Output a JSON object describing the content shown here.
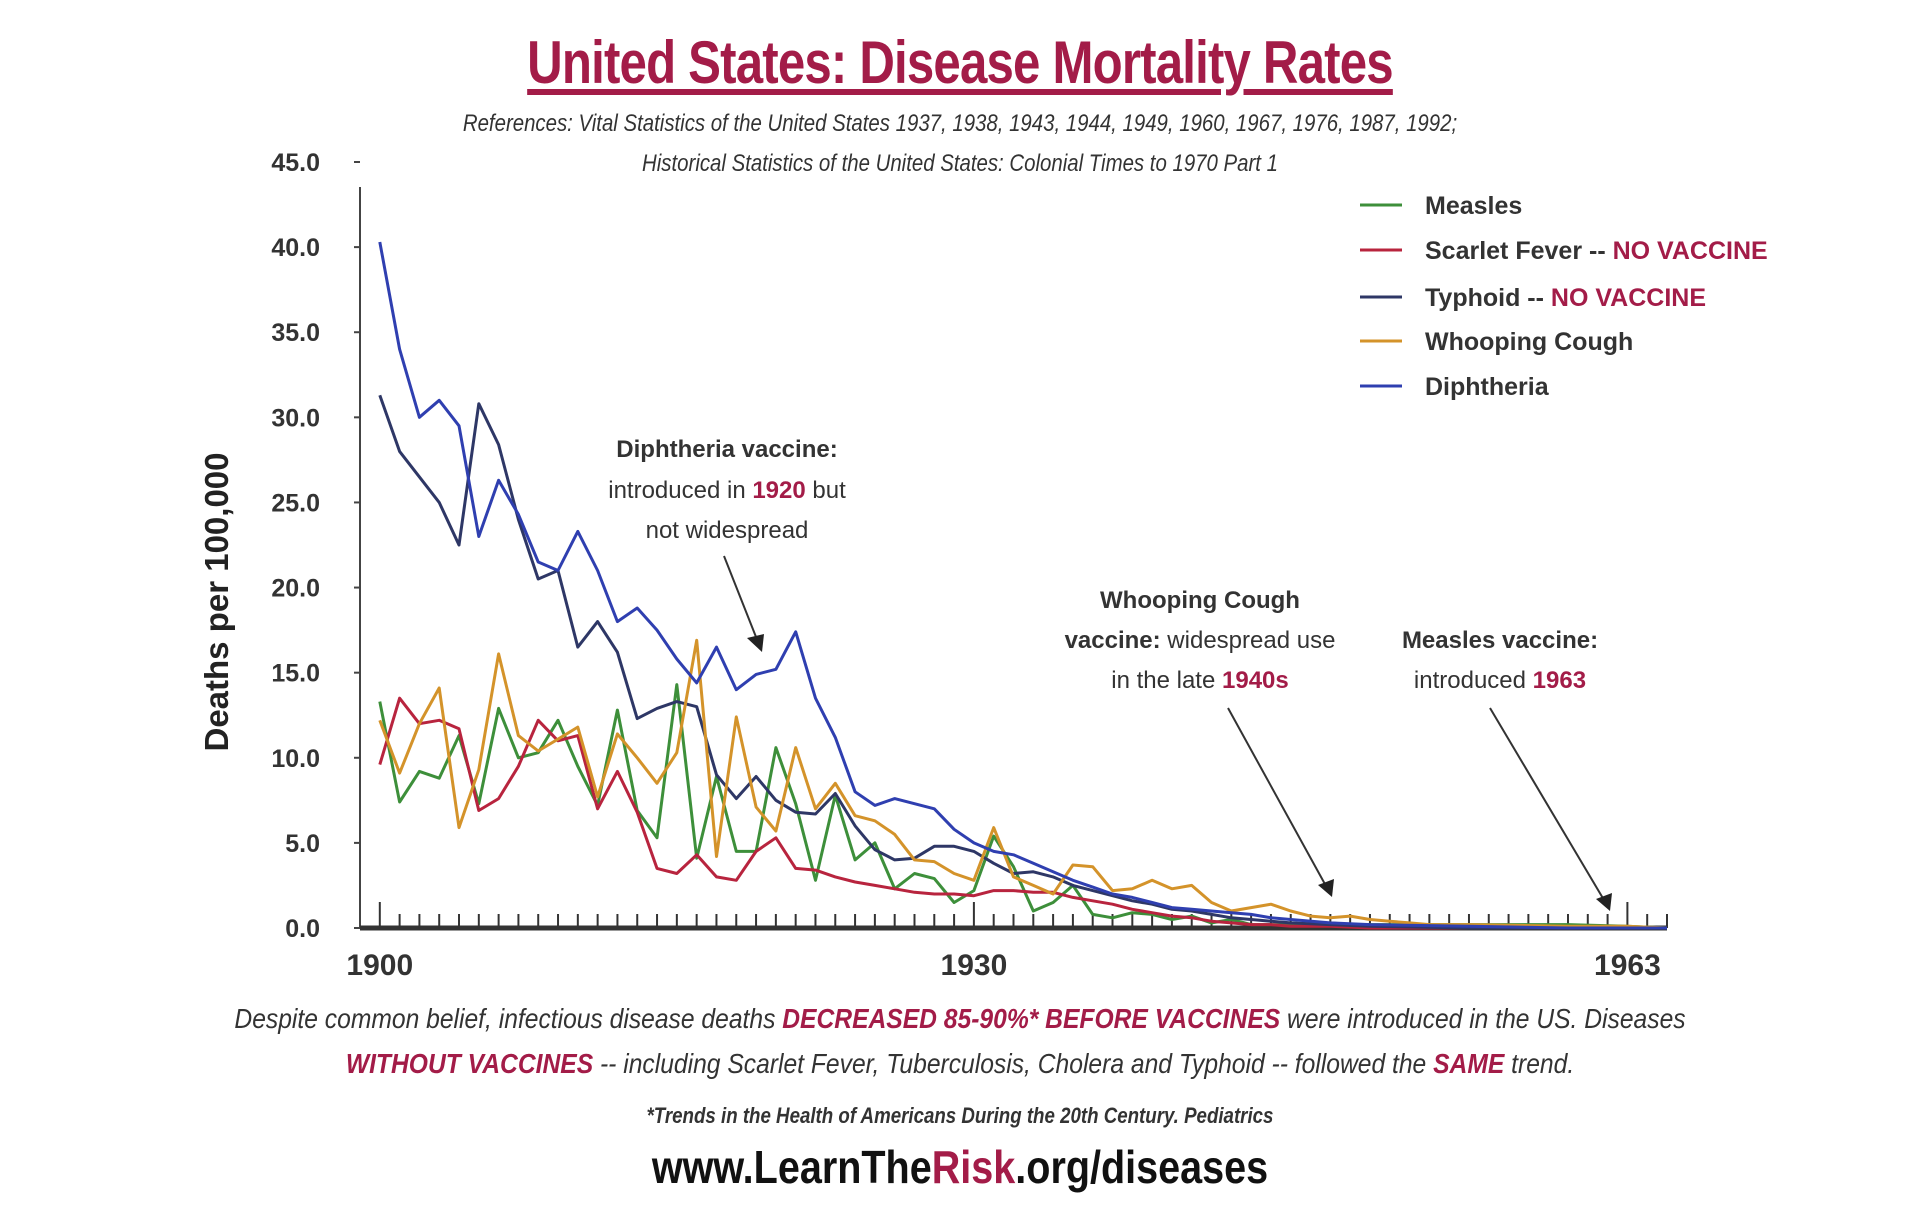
{
  "header": {
    "title": "United States: Disease Mortality Rates",
    "references_line1": "References: Vital Statistics of the United States 1937, 1938, 1943, 1944, 1949, 1960, 1967, 1976, 1987, 1992;",
    "references_line2": "Historical Statistics of the United States: Colonial Times to 1970 Part 1"
  },
  "chart_data": {
    "type": "line",
    "ylabel": "Deaths per 100,000",
    "xlabel": "",
    "ylim": [
      0,
      45
    ],
    "xlim": [
      1899,
      1965
    ],
    "yticks": [
      "0.0",
      "5.0",
      "10.0",
      "15.0",
      "20.0",
      "25.0",
      "30.0",
      "35.0",
      "40.0",
      "45.0"
    ],
    "xtick_labels": [
      {
        "year": 1900,
        "label": "1900"
      },
      {
        "year": 1930,
        "label": "1930"
      },
      {
        "year": 1963,
        "label": "1963"
      }
    ],
    "grid": false,
    "legend_position": "top-right",
    "series": [
      {
        "name": "Measles",
        "color": "#3d8f3a",
        "x": [
          1900,
          1901,
          1902,
          1903,
          1904,
          1905,
          1906,
          1907,
          1908,
          1909,
          1910,
          1911,
          1912,
          1913,
          1914,
          1915,
          1916,
          1917,
          1918,
          1919,
          1920,
          1921,
          1922,
          1923,
          1924,
          1925,
          1926,
          1927,
          1928,
          1929,
          1930,
          1931,
          1932,
          1933,
          1934,
          1935,
          1936,
          1937,
          1938,
          1939,
          1940,
          1941,
          1942,
          1943,
          1944,
          1945,
          1946,
          1947,
          1948,
          1949,
          1950,
          1952,
          1955,
          1960,
          1963,
          1965
        ],
        "y": [
          13.3,
          7.4,
          9.2,
          8.8,
          11.3,
          7.3,
          12.9,
          10.0,
          10.3,
          12.2,
          9.5,
          7.2,
          12.8,
          6.9,
          5.3,
          14.3,
          4.1,
          8.9,
          4.5,
          4.5,
          10.6,
          7.3,
          2.8,
          7.8,
          4.0,
          5.0,
          2.3,
          3.2,
          2.9,
          1.5,
          2.2,
          5.4,
          3.6,
          1.0,
          1.5,
          2.5,
          0.8,
          0.6,
          0.9,
          0.8,
          0.5,
          0.7,
          0.3,
          0.5,
          0.2,
          0.2,
          0.2,
          0.2,
          0.3,
          0.2,
          0.2,
          0.2,
          0.2,
          0.2,
          0.1,
          0.0
        ]
      },
      {
        "name": "Scarlet Fever",
        "label_suffix": "NO VACCINE",
        "color": "#b8243e",
        "x": [
          1900,
          1901,
          1902,
          1903,
          1904,
          1905,
          1906,
          1907,
          1908,
          1909,
          1910,
          1911,
          1912,
          1913,
          1914,
          1915,
          1916,
          1917,
          1918,
          1919,
          1920,
          1921,
          1922,
          1923,
          1924,
          1925,
          1926,
          1927,
          1928,
          1929,
          1930,
          1931,
          1932,
          1933,
          1934,
          1935,
          1936,
          1937,
          1938,
          1939,
          1940,
          1941,
          1942,
          1943,
          1944,
          1945,
          1946,
          1948,
          1950,
          1955,
          1960,
          1965
        ],
        "y": [
          9.6,
          13.5,
          12.0,
          12.2,
          11.7,
          6.9,
          7.6,
          9.5,
          12.2,
          11.0,
          11.3,
          7.0,
          9.2,
          6.8,
          3.5,
          3.2,
          4.3,
          3.0,
          2.8,
          4.5,
          5.3,
          3.5,
          3.4,
          3.0,
          2.7,
          2.5,
          2.3,
          2.1,
          2.0,
          2.0,
          1.9,
          2.2,
          2.2,
          2.1,
          2.1,
          1.8,
          1.6,
          1.4,
          1.1,
          0.9,
          0.7,
          0.6,
          0.4,
          0.3,
          0.2,
          0.2,
          0.1,
          0.1,
          0.0,
          0.0,
          0.0,
          0.0
        ]
      },
      {
        "name": "Typhoid",
        "label_suffix": "NO VACCINE",
        "color": "#2e3766",
        "x": [
          1900,
          1901,
          1902,
          1903,
          1904,
          1905,
          1906,
          1907,
          1908,
          1909,
          1910,
          1911,
          1912,
          1913,
          1914,
          1915,
          1916,
          1917,
          1918,
          1919,
          1920,
          1921,
          1922,
          1923,
          1924,
          1925,
          1926,
          1927,
          1928,
          1929,
          1930,
          1931,
          1932,
          1933,
          1934,
          1935,
          1936,
          1937,
          1938,
          1939,
          1940,
          1941,
          1942,
          1943,
          1944,
          1945,
          1946,
          1948,
          1950,
          1955,
          1960,
          1965
        ],
        "y": [
          31.3,
          28.0,
          26.5,
          25.0,
          22.5,
          30.8,
          28.4,
          24.0,
          20.5,
          21.0,
          16.5,
          18.0,
          16.2,
          12.3,
          12.9,
          13.3,
          13.0,
          9.0,
          7.6,
          8.9,
          7.5,
          6.8,
          6.7,
          7.9,
          6.0,
          4.6,
          4.0,
          4.1,
          4.8,
          4.8,
          4.5,
          3.8,
          3.2,
          3.3,
          3.0,
          2.5,
          2.2,
          1.9,
          1.6,
          1.4,
          1.1,
          1.0,
          0.8,
          0.6,
          0.5,
          0.4,
          0.3,
          0.2,
          0.1,
          0.0,
          0.0,
          0.0
        ]
      },
      {
        "name": "Whooping Cough",
        "color": "#d4932a",
        "x": [
          1900,
          1901,
          1902,
          1903,
          1904,
          1905,
          1906,
          1907,
          1908,
          1909,
          1910,
          1911,
          1912,
          1913,
          1914,
          1915,
          1916,
          1917,
          1918,
          1919,
          1920,
          1921,
          1922,
          1923,
          1924,
          1925,
          1926,
          1927,
          1928,
          1929,
          1930,
          1931,
          1932,
          1933,
          1934,
          1935,
          1936,
          1937,
          1938,
          1939,
          1940,
          1941,
          1942,
          1943,
          1944,
          1945,
          1946,
          1947,
          1948,
          1949,
          1950,
          1951,
          1952,
          1953,
          1955,
          1960,
          1963,
          1965
        ],
        "y": [
          12.2,
          9.1,
          12.0,
          14.1,
          5.9,
          9.3,
          16.1,
          11.3,
          10.4,
          11.1,
          11.8,
          7.7,
          11.4,
          10.0,
          8.5,
          10.3,
          16.9,
          4.2,
          12.4,
          7.1,
          5.7,
          10.6,
          7.0,
          8.5,
          6.6,
          6.3,
          5.5,
          4.0,
          3.9,
          3.2,
          2.8,
          5.9,
          3.0,
          2.5,
          2.0,
          3.7,
          3.6,
          2.2,
          2.3,
          2.8,
          2.3,
          2.5,
          1.5,
          1.0,
          1.2,
          1.4,
          1.0,
          0.7,
          0.6,
          0.7,
          0.5,
          0.4,
          0.3,
          0.2,
          0.2,
          0.1,
          0.1,
          0.0
        ]
      },
      {
        "name": "Diphtheria",
        "color": "#2f3fb0",
        "x": [
          1900,
          1901,
          1902,
          1903,
          1904,
          1905,
          1906,
          1907,
          1908,
          1909,
          1910,
          1911,
          1912,
          1913,
          1914,
          1915,
          1916,
          1917,
          1918,
          1919,
          1920,
          1921,
          1922,
          1923,
          1924,
          1925,
          1926,
          1927,
          1928,
          1929,
          1930,
          1931,
          1932,
          1933,
          1934,
          1935,
          1936,
          1937,
          1938,
          1939,
          1940,
          1941,
          1942,
          1943,
          1944,
          1945,
          1946,
          1948,
          1950,
          1955,
          1960,
          1965
        ],
        "y": [
          40.3,
          34.0,
          30.0,
          31.0,
          29.5,
          23.0,
          26.3,
          24.3,
          21.5,
          21.0,
          23.3,
          21.0,
          18.0,
          18.8,
          17.5,
          15.8,
          14.4,
          16.5,
          14.0,
          14.9,
          15.2,
          17.4,
          13.5,
          11.2,
          8.0,
          7.2,
          7.6,
          7.3,
          7.0,
          5.8,
          5.0,
          4.5,
          4.3,
          3.8,
          3.3,
          2.8,
          2.4,
          2.0,
          1.8,
          1.5,
          1.2,
          1.1,
          1.0,
          0.9,
          0.8,
          0.6,
          0.5,
          0.3,
          0.2,
          0.1,
          0.0,
          0.0
        ]
      }
    ],
    "annotations": [
      {
        "id": "diphtheria",
        "line1": "Diphtheria vaccine:",
        "line2a": "introduced in ",
        "line2b": "1920",
        "line2c": " but",
        "line3": "not widespread"
      },
      {
        "id": "whooping",
        "line1": "Whooping Cough",
        "line2a": "vaccine:",
        "line2b": " widespread use",
        "line3a": "in the late ",
        "line3b": "1940s"
      },
      {
        "id": "measles",
        "line1": "Measles vaccine:",
        "line2a": "introduced ",
        "line2b": "1963"
      }
    ]
  },
  "footer": {
    "line1_a": "Despite common belief, infectious disease deaths ",
    "line1_b": "DECREASED 85-90%* BEFORE VACCINES",
    "line1_c": " were introduced in the US. Diseases",
    "line2_a": "WITHOUT VACCINES",
    "line2_b": " -- including Scarlet Fever, Tuberculosis, Cholera and Typhoid -- followed the ",
    "line2_c": "SAME",
    "line2_d": " trend.",
    "citation": "*Trends in the Health of Americans During the 20th Century. Pediatrics",
    "url_a": "www.LearnThe",
    "url_b": "Risk",
    "url_c": ".org/diseases"
  }
}
